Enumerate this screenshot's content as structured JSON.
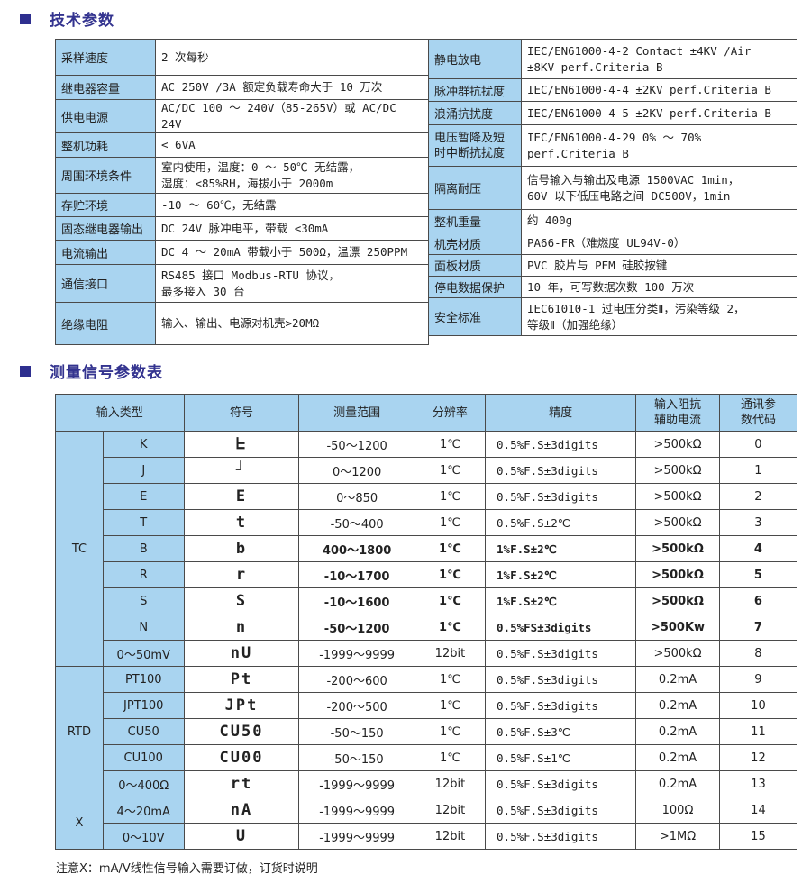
{
  "section1": {
    "title": "技术参数",
    "left": [
      [
        "采样速度",
        "2 次每秒"
      ],
      [
        "继电器容量",
        "AC 250V /3A 额定负载寿命大于 10 万次"
      ],
      [
        "供电电源",
        "AC/DC 100 ～ 240V（85-265V）或 AC/DC 24V"
      ],
      [
        "整机功耗",
        "< 6VA"
      ],
      [
        "周围环境条件",
        "室内使用，温度：0 ～ 50℃ 无结露，\n湿度：<85%RH，海拔小于 2000m"
      ],
      [
        "存贮环境",
        "-10 ～ 60℃，无结露"
      ],
      [
        "固态继电器输出",
        "DC 24V 脉冲电平，带载 <30mA"
      ],
      [
        "电流输出",
        "DC 4 ～ 20mA 带载小于 500Ω，温漂 250PPM"
      ],
      [
        "通信接口",
        "RS485 接口  Modbus-RTU 协议，\n最多接入 30 台"
      ],
      [
        "绝缘电阻",
        "输入、输出、电源对机壳>20MΩ"
      ]
    ],
    "right": [
      [
        "静电放电",
        "IEC/EN61000-4-2  Contact ±4KV /Air\n±8KV perf.Criteria B"
      ],
      [
        "脉冲群抗扰度",
        "IEC/EN61000-4-4  ±2KV  perf.Criteria B"
      ],
      [
        "浪涌抗扰度",
        "IEC/EN61000-4-5  ±2KV  perf.Criteria B"
      ],
      [
        "电压暂降及短时中断抗扰度",
        "IEC/EN61000-4-29  0% ～ 70%\nperf.Criteria B"
      ],
      [
        "隔离耐压",
        "信号输入与输出及电源 1500VAC 1min，\n60V 以下低压电路之间 DC500V，1min"
      ],
      [
        "整机重量",
        "约 400g"
      ],
      [
        "机壳材质",
        "PA66-FR（难燃度 UL94V-0）"
      ],
      [
        "面板材质",
        "PVC 胶片与 PEM 硅胶按键"
      ],
      [
        "停电数据保护",
        "10 年，可写数据次数 100 万次"
      ],
      [
        "安全标准",
        "IEC61010-1  过电压分类Ⅱ，污染等级 2，\n等级Ⅱ（加强绝缘）"
      ]
    ]
  },
  "section2": {
    "title": "测量信号参数表",
    "headers": [
      "输入类型",
      "符号",
      "测量范围",
      "分辨率",
      "精度",
      "输入阻抗\n辅助电流",
      "通讯参\n数代码"
    ],
    "groups": [
      {
        "name": "TC",
        "rows": 9
      },
      {
        "name": "RTD",
        "rows": 5
      },
      {
        "name": "X",
        "rows": 2
      }
    ],
    "rows": [
      [
        "K",
        "ᖶ",
        "-50～1200",
        "1℃",
        "0.5%F.S±3digits",
        ">500kΩ",
        "0"
      ],
      [
        "J",
        "┘",
        "0～1200",
        "1℃",
        "0.5%F.S±3digits",
        ">500kΩ",
        "1"
      ],
      [
        "E",
        "E",
        "0～850",
        "1℃",
        "0.5%F.S±3digits",
        ">500kΩ",
        "2"
      ],
      [
        "T",
        "t",
        "-50～400",
        "1℃",
        "0.5%F.S±2℃",
        ">500kΩ",
        "3"
      ],
      [
        "B",
        "b",
        "400～1800",
        "1℃",
        "1%F.S±2℃",
        ">500kΩ",
        "4"
      ],
      [
        "R",
        "r",
        "-10～1700",
        "1℃",
        "1%F.S±2℃",
        ">500kΩ",
        "5"
      ],
      [
        "S",
        "S",
        "-10～1600",
        "1℃",
        "1%F.S±2℃",
        ">500kΩ",
        "6"
      ],
      [
        "N",
        "n",
        "-50～1200",
        "1℃",
        "0.5%FS±3digits",
        ">500Kw",
        "7"
      ],
      [
        "0～50mV",
        "nU",
        "-1999～9999",
        "12bit",
        "0.5%F.S±3digits",
        ">500kΩ",
        "8"
      ],
      [
        "PT100",
        "Pt",
        "-200～600",
        "1℃",
        "0.5%F.S±3digits",
        "0.2mA",
        "9"
      ],
      [
        "JPT100",
        "JPt",
        "-200～500",
        "1℃",
        "0.5%F.S±3digits",
        "0.2mA",
        "10"
      ],
      [
        "CU50",
        "CU50",
        "-50～150",
        "1℃",
        "0.5%F.S±3℃",
        "0.2mA",
        "11"
      ],
      [
        "CU100",
        "CU00",
        "-50～150",
        "1℃",
        "0.5%F.S±1℃",
        "0.2mA",
        "12"
      ],
      [
        "0～400Ω",
        "rt",
        "-1999～9999",
        "12bit",
        "0.5%F.S±3digits",
        "0.2mA",
        "13"
      ],
      [
        "4～20mA",
        "nA",
        "-1999～9999",
        "12bit",
        "0.5%F.S±3digits",
        "100Ω",
        "14"
      ],
      [
        "0～10V",
        "U",
        "-1999～9999",
        "12bit",
        "0.5%F.S±3digits",
        ">1MΩ",
        "15"
      ]
    ],
    "bold_rows": [
      4,
      5,
      6,
      7
    ]
  },
  "note": "注意X：mA/V线性信号输入需要订做，订货时说明"
}
